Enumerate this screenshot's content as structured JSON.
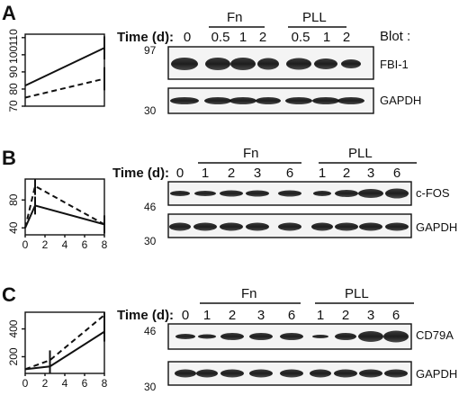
{
  "panels": [
    {
      "letter": "A",
      "time_label": "Time (d):",
      "times": [
        "0",
        "0.5",
        "1",
        "2",
        "0.5",
        "1",
        "2"
      ],
      "groups": [
        "Fn",
        "PLL"
      ],
      "blot_header": "Blot :",
      "blots": [
        {
          "marker": "97",
          "label": "FBI-1"
        },
        {
          "marker": "30",
          "label": "GAPDH"
        }
      ]
    },
    {
      "letter": "B",
      "time_label": "Time (d):",
      "times": [
        "0",
        "1",
        "2",
        "3",
        "6",
        "1",
        "2",
        "3",
        "6"
      ],
      "groups": [
        "Fn",
        "PLL"
      ],
      "blots": [
        {
          "marker": "46",
          "label": "c-FOS"
        },
        {
          "marker": "30",
          "label": "GAPDH"
        }
      ]
    },
    {
      "letter": "C",
      "time_label": "Time (d):",
      "times": [
        "0",
        "1",
        "2",
        "3",
        "6",
        "1",
        "2",
        "3",
        "6"
      ],
      "groups": [
        "Fn",
        "PLL"
      ],
      "blots": [
        {
          "marker": "46",
          "label": "CD79A"
        },
        {
          "marker": "30",
          "label": "GAPDH"
        }
      ]
    }
  ],
  "chart_data": [
    {
      "type": "line",
      "ylim": [
        70,
        112
      ],
      "xlim": [
        0,
        8
      ],
      "yticks": [
        "70",
        "80",
        "90",
        "100",
        "110"
      ],
      "xticks": [
        "0",
        "2",
        "4",
        "6",
        "8"
      ],
      "series": [
        {
          "style": "solid",
          "x": [
            0,
            8
          ],
          "y": [
            82,
            104
          ]
        },
        {
          "style": "dashed",
          "x": [
            0,
            8
          ],
          "y": [
            75,
            86
          ]
        }
      ]
    },
    {
      "type": "line",
      "ylim": [
        30,
        110
      ],
      "xlim": [
        0,
        8
      ],
      "yticks": [
        "40",
        "80"
      ],
      "xticks": [
        "0",
        "2",
        "4",
        "6",
        "8"
      ],
      "series": [
        {
          "style": "solid",
          "x": [
            0,
            1,
            8
          ],
          "y": [
            40,
            72,
            45
          ]
        },
        {
          "style": "dashed",
          "x": [
            0,
            1,
            8
          ],
          "y": [
            40,
            100,
            45
          ]
        }
      ]
    },
    {
      "type": "line",
      "ylim": [
        80,
        520
      ],
      "xlim": [
        0,
        8
      ],
      "yticks": [
        "200",
        "400"
      ],
      "xticks": [
        "0",
        "2",
        "4",
        "6",
        "8"
      ],
      "series": [
        {
          "style": "solid",
          "x": [
            0,
            2.5,
            8
          ],
          "y": [
            110,
            130,
            380
          ]
        },
        {
          "style": "dashed",
          "x": [
            0,
            2.5,
            8
          ],
          "y": [
            110,
            175,
            500
          ]
        }
      ]
    }
  ]
}
